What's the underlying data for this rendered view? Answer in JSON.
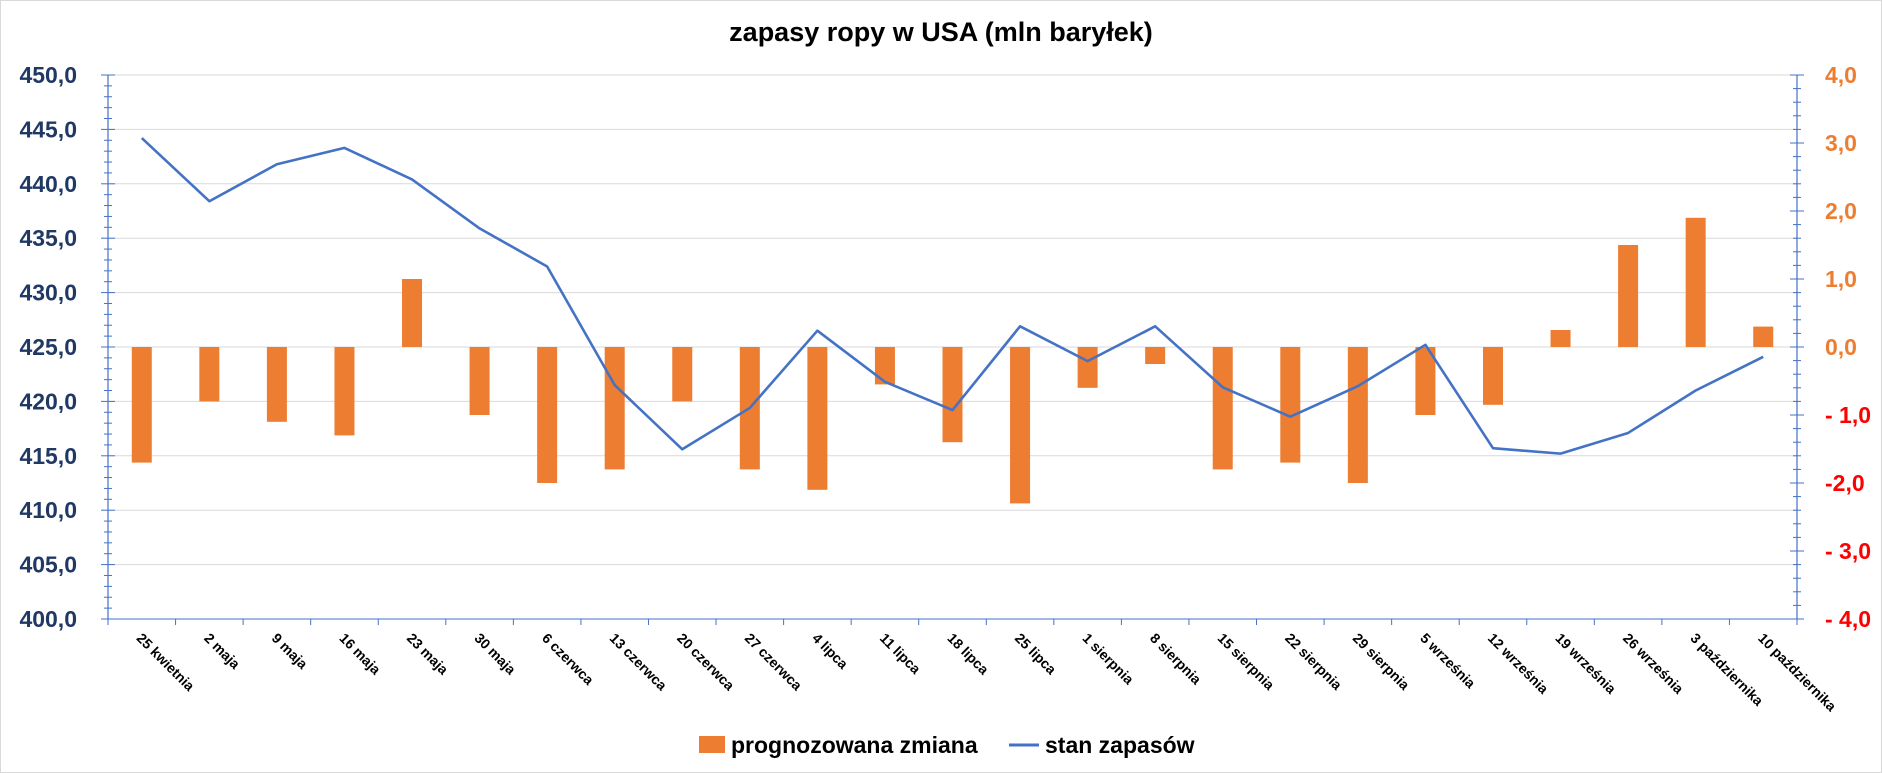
{
  "chart_data": {
    "type": "bar+line",
    "title": "zapasy ropy w USA (mln baryłek)",
    "categories": [
      "25 kwietnia",
      "2 maja",
      "9 maja",
      "16 maja",
      "23 maja",
      "30 maja",
      "6 czerwca",
      "13 czerwca",
      "20 czerwca",
      "27 czerwca",
      "4 lipca",
      "11 lipca",
      "18 lipca",
      "25 lipca",
      "1 sierpnia",
      "8 sierpnia",
      "15 sierpnia",
      "22 sierpnia",
      "29 sierpnia",
      "5 września",
      "12 września",
      "19 września",
      "26 września",
      "3 października",
      "10 października"
    ],
    "series": [
      {
        "name": "prognozowana zmiana",
        "type": "bar",
        "axis": "right",
        "color": "#ed7d31",
        "values": [
          -1.7,
          -0.8,
          -1.1,
          -1.3,
          1.0,
          -1.0,
          -2.0,
          -1.8,
          -0.8,
          -1.8,
          -2.1,
          -0.55,
          -1.4,
          -2.3,
          -0.6,
          -0.25,
          -1.8,
          -1.7,
          -2.0,
          -1.0,
          -0.85,
          0.25,
          1.5,
          1.9,
          0.3
        ]
      },
      {
        "name": "stan zapasów",
        "type": "line",
        "axis": "left",
        "color": "#4472c4",
        "values": [
          444.2,
          438.4,
          441.8,
          443.3,
          440.4,
          435.9,
          432.4,
          421.5,
          415.6,
          419.4,
          426.5,
          421.8,
          419.2,
          426.9,
          423.7,
          426.9,
          421.3,
          418.6,
          421.4,
          425.2,
          415.7,
          415.2,
          417.1,
          421.0,
          424.1
        ]
      }
    ],
    "left_axis": {
      "min": 400,
      "max": 450,
      "step": 5,
      "tick_labels": [
        "400,0",
        "405,0",
        "410,0",
        "415,0",
        "420,0",
        "425,0",
        "430,0",
        "435,0",
        "440,0",
        "445,0",
        "450,0"
      ],
      "label_color": "#1f3864"
    },
    "right_axis": {
      "min": -4,
      "max": 4,
      "step": 1,
      "tick_labels": [
        "- 4,0",
        "- 3,0",
        "-2,0",
        "- 1,0",
        "0,0",
        "1,0",
        "2,0",
        "3,0",
        "4,0"
      ],
      "negative_color": "#ff0000",
      "positive_color": "#ed7d31"
    },
    "grid": true,
    "legend_position": "bottom"
  },
  "legend": {
    "items": [
      {
        "label": "prognozowana zmiana",
        "color": "#ed7d31",
        "kind": "bar"
      },
      {
        "label": "stan zapasów",
        "color": "#4472c4",
        "kind": "line"
      }
    ]
  }
}
